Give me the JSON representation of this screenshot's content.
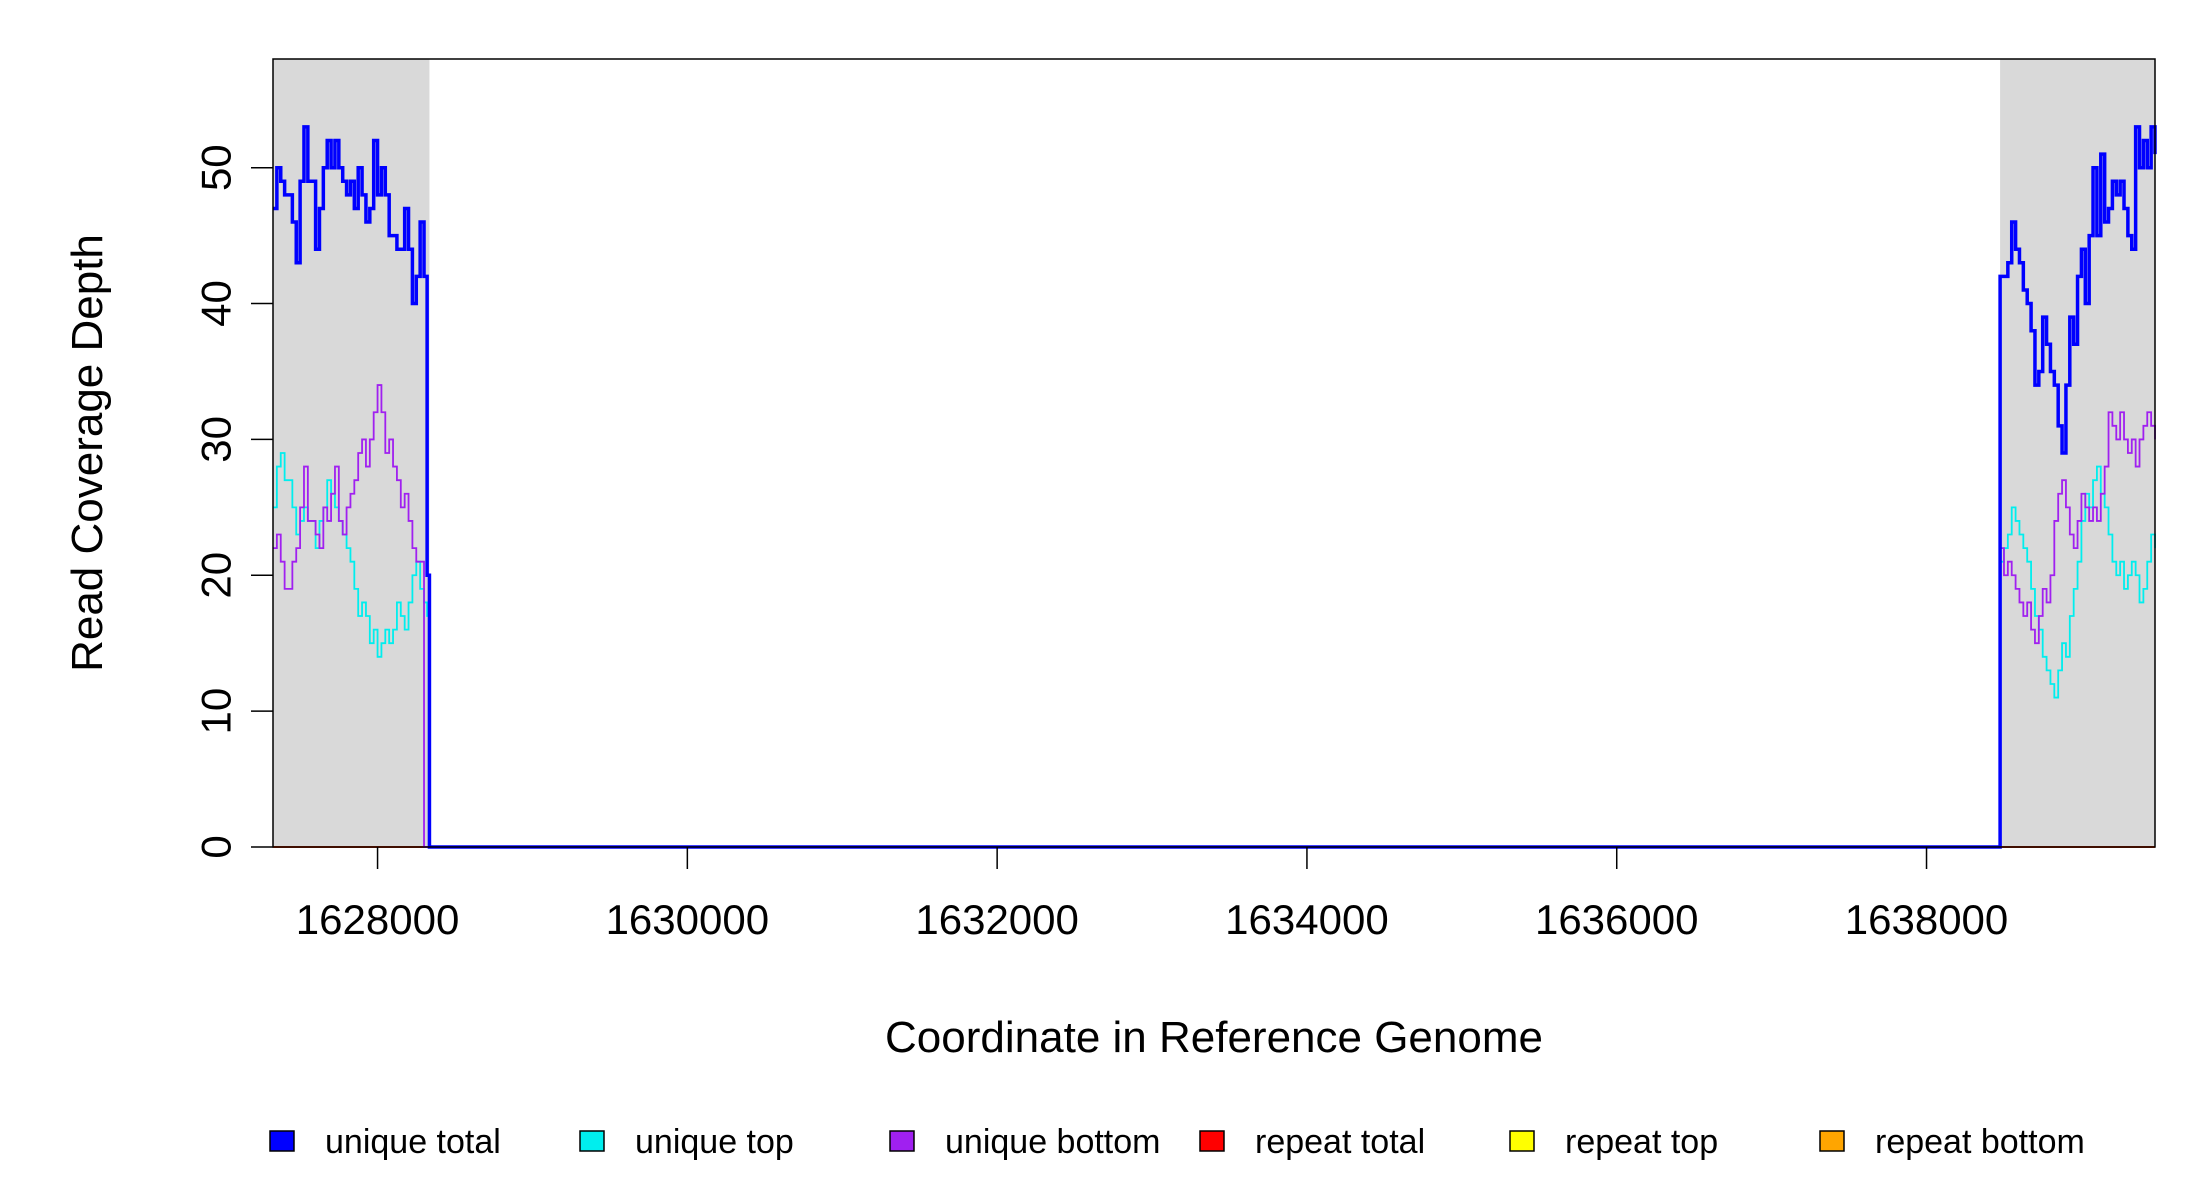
{
  "chart_data": {
    "type": "line",
    "title": "",
    "xlabel": "Coordinate in Reference Genome",
    "ylabel": "Read Coverage Depth",
    "xlim": [
      1627325,
      1639475
    ],
    "ylim": [
      0,
      58
    ],
    "xticks": [
      1628000,
      1630000,
      1632000,
      1634000,
      1636000,
      1638000
    ],
    "xtick_labels": [
      "1628000",
      "1630000",
      "1632000",
      "1634000",
      "1636000",
      "1638000"
    ],
    "yticks": [
      0,
      10,
      20,
      30,
      40,
      50
    ],
    "ytick_labels": [
      "0",
      "10",
      "20",
      "30",
      "40",
      "50"
    ],
    "grid": false,
    "legend_position": "bottom",
    "shaded_regions": [
      {
        "start": 1627325,
        "end": 1628335,
        "color": "#d9d9d9"
      },
      {
        "start": 1638475,
        "end": 1639475,
        "color": "#d9d9d9"
      }
    ],
    "series": [
      {
        "name": "unique total",
        "color": "#0000ff",
        "width": 3.5,
        "x": [
          1627325,
          1627350,
          1627375,
          1627400,
          1627450,
          1627475,
          1627500,
          1627525,
          1627550,
          1627600,
          1627625,
          1627650,
          1627675,
          1627700,
          1627725,
          1627750,
          1627775,
          1627800,
          1627825,
          1627850,
          1627875,
          1627900,
          1627925,
          1627950,
          1627975,
          1628000,
          1628025,
          1628050,
          1628075,
          1628100,
          1628125,
          1628150,
          1628175,
          1628200,
          1628225,
          1628250,
          1628275,
          1628300,
          1628320,
          1628335,
          1628350,
          1638450,
          1638475,
          1638500,
          1638525,
          1638550,
          1638575,
          1638600,
          1638625,
          1638650,
          1638675,
          1638700,
          1638725,
          1638750,
          1638775,
          1638800,
          1638825,
          1638850,
          1638875,
          1638900,
          1638925,
          1638950,
          1638975,
          1639000,
          1639025,
          1639050,
          1639075,
          1639100,
          1639125,
          1639150,
          1639175,
          1639200,
          1639225,
          1639250,
          1639275,
          1639300,
          1639325,
          1639350,
          1639375,
          1639400,
          1639425,
          1639450,
          1639475
        ],
        "y": [
          47,
          50,
          49,
          48,
          46,
          43,
          49,
          53,
          49,
          44,
          47,
          50,
          52,
          50,
          52,
          50,
          49,
          48,
          49,
          47,
          50,
          48,
          46,
          47,
          52,
          48,
          50,
          48,
          45,
          45,
          44,
          44,
          47,
          44,
          40,
          42,
          46,
          42,
          20,
          0,
          0,
          0,
          42,
          42,
          43,
          46,
          44,
          43,
          41,
          40,
          38,
          34,
          35,
          39,
          37,
          35,
          34,
          31,
          29,
          34,
          39,
          37,
          42,
          44,
          40,
          45,
          50,
          45,
          51,
          46,
          47,
          49,
          48,
          49,
          47,
          45,
          44,
          53,
          50,
          52,
          50,
          53,
          51
        ]
      },
      {
        "name": "unique top",
        "color": "#00eeee",
        "width": 1.8,
        "x": [
          1627325,
          1627350,
          1627375,
          1627400,
          1627450,
          1627475,
          1627500,
          1627525,
          1627550,
          1627600,
          1627625,
          1627650,
          1627675,
          1627700,
          1627725,
          1627750,
          1627775,
          1627800,
          1627825,
          1627850,
          1627875,
          1627900,
          1627925,
          1627950,
          1627975,
          1628000,
          1628025,
          1628050,
          1628075,
          1628100,
          1628125,
          1628150,
          1628175,
          1628200,
          1628225,
          1628250,
          1628275,
          1628300,
          1628320,
          1628335,
          1628350,
          1638450,
          1638475,
          1638500,
          1638525,
          1638550,
          1638575,
          1638600,
          1638625,
          1638650,
          1638675,
          1638700,
          1638725,
          1638750,
          1638775,
          1638800,
          1638825,
          1638850,
          1638875,
          1638900,
          1638925,
          1638950,
          1638975,
          1639000,
          1639025,
          1639050,
          1639075,
          1639100,
          1639125,
          1639150,
          1639175,
          1639200,
          1639225,
          1639250,
          1639275,
          1639300,
          1639325,
          1639350,
          1639375,
          1639400,
          1639425,
          1639450,
          1639475
        ],
        "y": [
          25,
          28,
          29,
          27,
          25,
          23,
          24,
          25,
          24,
          22,
          24,
          25,
          27,
          26,
          25,
          24,
          23,
          22,
          21,
          19,
          17,
          18,
          17,
          15,
          16,
          14,
          15,
          16,
          15,
          16,
          18,
          17,
          16,
          18,
          20,
          21,
          19,
          18,
          17,
          0,
          0,
          0,
          21,
          22,
          23,
          25,
          24,
          23,
          22,
          21,
          19,
          17,
          16,
          14,
          13,
          12,
          11,
          13,
          15,
          14,
          17,
          19,
          21,
          24,
          26,
          25,
          27,
          28,
          26,
          25,
          23,
          21,
          20,
          21,
          19,
          20,
          21,
          20,
          18,
          19,
          21,
          23,
          22
        ]
      },
      {
        "name": "unique bottom",
        "color": "#a020f0",
        "width": 1.8,
        "x": [
          1627325,
          1627350,
          1627375,
          1627400,
          1627450,
          1627475,
          1627500,
          1627525,
          1627550,
          1627600,
          1627625,
          1627650,
          1627675,
          1627700,
          1627725,
          1627750,
          1627775,
          1627800,
          1627825,
          1627850,
          1627875,
          1627900,
          1627925,
          1627950,
          1627975,
          1628000,
          1628025,
          1628050,
          1628075,
          1628100,
          1628125,
          1628150,
          1628175,
          1628200,
          1628225,
          1628250,
          1628275,
          1628300,
          1628320,
          1628335,
          1628350,
          1638450,
          1638475,
          1638500,
          1638525,
          1638550,
          1638575,
          1638600,
          1638625,
          1638650,
          1638675,
          1638700,
          1638725,
          1638750,
          1638775,
          1638800,
          1638825,
          1638850,
          1638875,
          1638900,
          1638925,
          1638950,
          1638975,
          1639000,
          1639025,
          1639050,
          1639075,
          1639100,
          1639125,
          1639150,
          1639175,
          1639200,
          1639225,
          1639250,
          1639275,
          1639300,
          1639325,
          1639350,
          1639375,
          1639400,
          1639425,
          1639450,
          1639475
        ],
        "y": [
          22,
          23,
          21,
          19,
          21,
          22,
          25,
          28,
          24,
          23,
          22,
          25,
          24,
          26,
          28,
          24,
          23,
          25,
          26,
          27,
          29,
          30,
          28,
          30,
          32,
          34,
          32,
          29,
          30,
          28,
          27,
          25,
          26,
          24,
          22,
          21,
          21,
          0,
          0,
          0,
          0,
          0,
          22,
          20,
          21,
          20,
          19,
          18,
          17,
          18,
          16,
          15,
          17,
          19,
          18,
          20,
          24,
          26,
          27,
          25,
          23,
          22,
          24,
          26,
          25,
          24,
          25,
          24,
          26,
          28,
          32,
          31,
          30,
          32,
          30,
          29,
          30,
          28,
          30,
          31,
          32,
          31,
          30
        ]
      },
      {
        "name": "repeat total",
        "color": "#ff0000",
        "width": 1.8,
        "x": [
          1627325,
          1639475
        ],
        "y": [
          0,
          0
        ]
      },
      {
        "name": "repeat top",
        "color": "#ffff00",
        "width": 1.8,
        "x": [
          1627325,
          1639475
        ],
        "y": [
          0,
          0
        ]
      },
      {
        "name": "repeat bottom",
        "color": "#ffa500",
        "width": 1.8,
        "x": [
          1627325,
          1639475
        ],
        "y": [
          0,
          0
        ]
      }
    ]
  }
}
